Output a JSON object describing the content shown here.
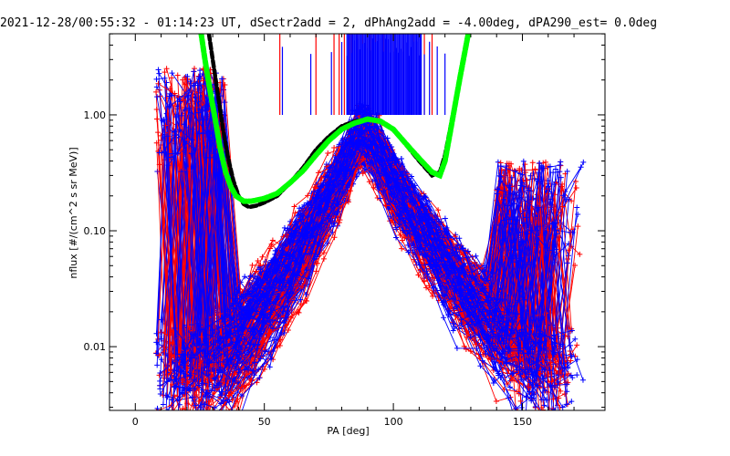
{
  "chart_data": {
    "type": "line",
    "title": "2021-12-28/00:55:32 - 01:14:23 UT, dSectr2add = 2, dPhAng2add = -4.00deg, dPA290_est=   0.0deg",
    "xlabel": "PA [deg]",
    "ylabel": "nflux [#/(cm^2 s sr MeV)]",
    "xlim": [
      -10,
      182
    ],
    "ylim_log10": [
      -2.55,
      0.7
    ],
    "y_scale": "log",
    "x_ticks": [
      0,
      50,
      100,
      150
    ],
    "y_ticks": [
      0.01,
      0.1,
      1.0
    ],
    "y_tick_labels": [
      "0.01",
      "0.10",
      "1.00"
    ],
    "colors": {
      "red": "#ff0000",
      "blue": "#0000ff",
      "green": "#00ff00",
      "black": "#000000"
    },
    "series": [
      {
        "color": "black",
        "style": "dashed",
        "x": [
          28,
          30,
          32,
          34,
          36,
          38,
          40,
          42,
          44,
          47,
          50,
          55,
          60,
          65,
          70,
          75,
          80,
          85,
          90,
          95,
          100,
          105,
          110,
          115,
          118,
          120,
          122,
          124,
          126,
          128,
          130
        ],
        "y": [
          6.0,
          3.0,
          1.5,
          0.75,
          0.42,
          0.27,
          0.2,
          0.17,
          0.16,
          0.165,
          0.175,
          0.2,
          0.26,
          0.35,
          0.5,
          0.65,
          0.8,
          0.88,
          0.92,
          0.88,
          0.75,
          0.55,
          0.4,
          0.3,
          0.32,
          0.45,
          0.75,
          1.3,
          2.3,
          4.0,
          7.0
        ]
      },
      {
        "color": "green",
        "style": "dashed",
        "x": [
          25,
          27,
          29,
          31,
          33,
          35,
          37,
          39,
          42,
          45,
          50,
          55,
          60,
          65,
          70,
          75,
          80,
          85,
          90,
          95,
          100,
          105,
          110,
          115,
          118,
          120,
          122,
          124,
          126,
          128,
          130
        ],
        "y": [
          6.0,
          3.0,
          1.6,
          0.9,
          0.5,
          0.32,
          0.24,
          0.2,
          0.18,
          0.18,
          0.19,
          0.21,
          0.26,
          0.33,
          0.45,
          0.6,
          0.75,
          0.85,
          0.92,
          0.88,
          0.75,
          0.56,
          0.42,
          0.32,
          0.3,
          0.4,
          0.7,
          1.25,
          2.2,
          3.8,
          6.5
        ]
      }
    ],
    "scatter_summary": {
      "red_curves": 120,
      "blue_curves": 150,
      "marker": "+",
      "peak_pa": 90,
      "peak_flux": 1.0
    },
    "top_markers": {
      "red_x": [
        56,
        70,
        77,
        79,
        81,
        83,
        84,
        86,
        88,
        90,
        91,
        93,
        96,
        100,
        104,
        108,
        112,
        115
      ],
      "blue_x": [
        57,
        68,
        76,
        80,
        82,
        84,
        85,
        86,
        87,
        88,
        89,
        90,
        91,
        92,
        93,
        94,
        95,
        96,
        97,
        98,
        99,
        100,
        101,
        102,
        103,
        104,
        105,
        106,
        107,
        108,
        109,
        110,
        112,
        114,
        117,
        120
      ]
    }
  }
}
